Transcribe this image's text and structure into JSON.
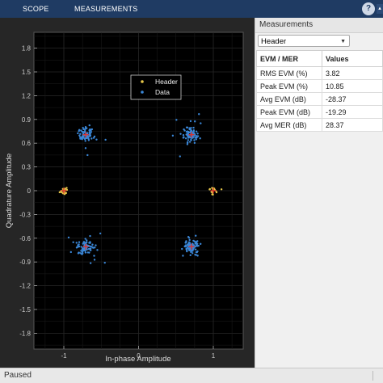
{
  "ribbon": {
    "tabs": [
      {
        "label": "SCOPE"
      },
      {
        "label": "MEASUREMENTS"
      }
    ],
    "help_label": "?",
    "collapse_label": "▴"
  },
  "plot": {
    "xlabel": "In-phase Amplitude",
    "ylabel": "Quadrature Amplitude",
    "xticks": [
      "-1",
      "0",
      "1"
    ],
    "yticks": [
      "1.8",
      "1.5",
      "1.2",
      "0.9",
      "0.6",
      "0.3",
      "0",
      "-0.3",
      "-0.6",
      "-0.9",
      "-1.2",
      "-1.5",
      "-1.8"
    ],
    "legend": [
      {
        "label": "Header",
        "color": "#e8c84a"
      },
      {
        "label": "Data",
        "color": "#3a86d6"
      }
    ]
  },
  "chart_data": {
    "type": "scatter",
    "xlim": [
      -1.4,
      1.4
    ],
    "ylim": [
      -2.0,
      2.0
    ],
    "grid": true,
    "legend_position": "top-center",
    "series": [
      {
        "name": "Header",
        "color": "#e8c84a",
        "centers": [
          [
            -1,
            0
          ],
          [
            1,
            0
          ]
        ],
        "spread": 0.03
      },
      {
        "name": "Data",
        "color": "#3a86d6",
        "centers": [
          [
            -0.707,
            0.707
          ],
          [
            0.707,
            0.707
          ],
          [
            -0.707,
            -0.707
          ],
          [
            0.707,
            -0.707
          ]
        ],
        "spread": 0.05
      }
    ],
    "reference_color": "#e0302a",
    "reference_points": [
      [
        -1,
        0
      ],
      [
        1,
        0
      ],
      [
        -0.707,
        0.707
      ],
      [
        0.707,
        0.707
      ],
      [
        -0.707,
        -0.707
      ],
      [
        0.707,
        -0.707
      ]
    ]
  },
  "measurements": {
    "panel_title": "Measurements",
    "dropdown_value": "Header",
    "columns": [
      "EVM / MER",
      "Values"
    ],
    "rows": [
      [
        "RMS EVM (%)",
        "3.82"
      ],
      [
        "Peak EVM (%)",
        "10.85"
      ],
      [
        "Avg EVM (dB)",
        "-28.37"
      ],
      [
        "Peak EVM (dB)",
        "-19.29"
      ],
      [
        "Avg MER (dB)",
        "28.37"
      ]
    ]
  },
  "status": {
    "text": "Paused"
  }
}
